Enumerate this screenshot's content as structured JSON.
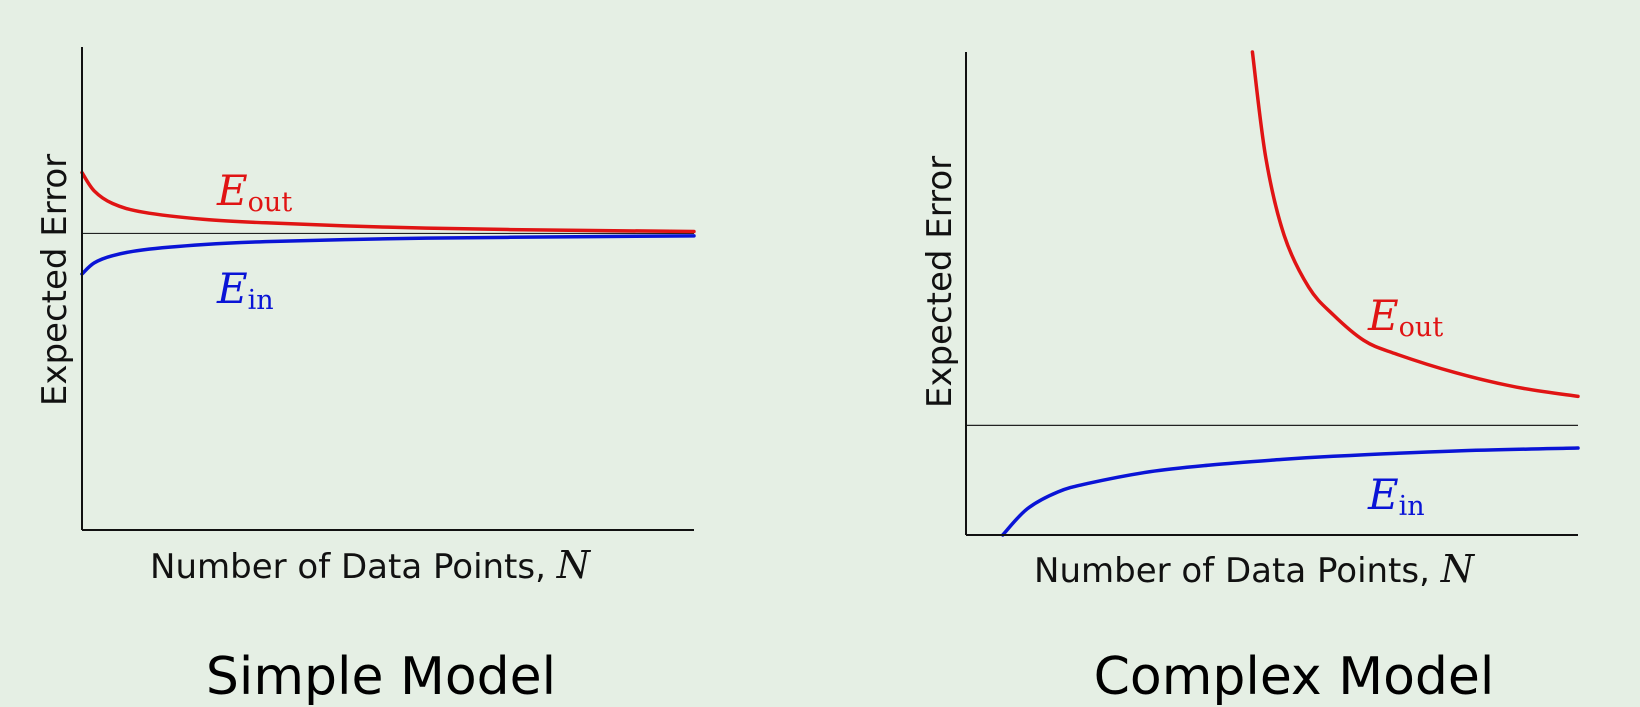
{
  "chart_data": [
    {
      "type": "line",
      "title": "Simple Model",
      "xlabel": "Number of Data Points, ",
      "xlabel_var": "N",
      "ylabel": "Expected Error",
      "xlim": [
        0,
        1
      ],
      "ylim": [
        0,
        1
      ],
      "grid": false,
      "asymptote": 0.614,
      "series": [
        {
          "name": "out",
          "color": "#e01414",
          "x": [
            0.0,
            0.02,
            0.05,
            0.1,
            0.2,
            0.3,
            0.5,
            0.7,
            1.0
          ],
          "y": [
            0.74,
            0.702,
            0.676,
            0.658,
            0.643,
            0.636,
            0.627,
            0.622,
            0.618
          ]
        },
        {
          "name": "in",
          "color": "#0a14d6",
          "x": [
            0.0,
            0.02,
            0.05,
            0.1,
            0.2,
            0.3,
            0.5,
            0.7,
            1.0
          ],
          "y": [
            0.53,
            0.553,
            0.568,
            0.58,
            0.591,
            0.597,
            0.603,
            0.606,
            0.609
          ]
        }
      ]
    },
    {
      "type": "line",
      "title": "Complex Model",
      "xlabel": "Number of Data Points, ",
      "xlabel_var": "N",
      "ylabel": "Expected Error",
      "xlim": [
        0,
        1
      ],
      "ylim": [
        0,
        1
      ],
      "grid": false,
      "asymptote": 0.227,
      "series": [
        {
          "name": "out",
          "color": "#e01414",
          "x": [
            0.468,
            0.49,
            0.52,
            0.56,
            0.6,
            0.65,
            0.7,
            0.8,
            0.9,
            1.0
          ],
          "y": [
            1.0,
            0.78,
            0.62,
            0.513,
            0.456,
            0.403,
            0.376,
            0.336,
            0.306,
            0.287
          ]
        },
        {
          "name": "in",
          "color": "#0a14d6",
          "x": [
            0.06,
            0.1,
            0.15,
            0.2,
            0.3,
            0.4,
            0.5,
            0.6,
            0.8,
            1.0
          ],
          "y": [
            0.0,
            0.054,
            0.089,
            0.107,
            0.131,
            0.145,
            0.155,
            0.163,
            0.174,
            0.18
          ]
        }
      ]
    }
  ],
  "labels": {
    "letter": "E"
  }
}
